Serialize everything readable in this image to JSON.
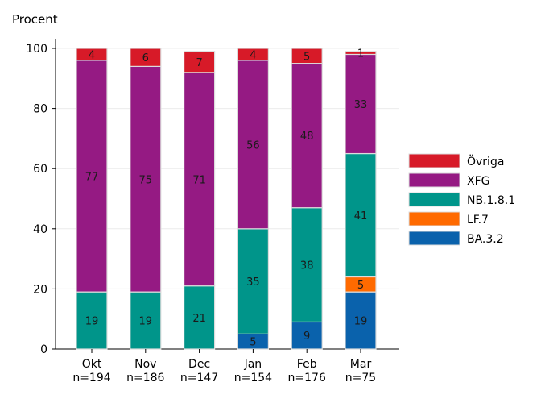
{
  "chart_data": {
    "type": "bar",
    "stacked": true,
    "ylabel": "Procent",
    "ylim": [
      0,
      100
    ],
    "yticks": [
      0,
      20,
      40,
      60,
      80,
      100
    ],
    "grid": true,
    "legend_position": "right",
    "categories": [
      "Okt",
      "Nov",
      "Dec",
      "Jan",
      "Feb",
      "Mar"
    ],
    "category_counts": [
      "n=194",
      "n=186",
      "n=147",
      "n=154",
      "n=176",
      "n=75"
    ],
    "series": [
      {
        "name": "BA.3.2",
        "color": "#0a62ac",
        "values": [
          0,
          0,
          0,
          5,
          9,
          19
        ]
      },
      {
        "name": "LF.7",
        "color": "#ff6a00",
        "values": [
          0,
          0,
          0,
          0,
          0,
          5
        ]
      },
      {
        "name": "NB.1.8.1",
        "color": "#00958a",
        "values": [
          19,
          19,
          21,
          35,
          38,
          41
        ]
      },
      {
        "name": "XFG",
        "color": "#951a83",
        "values": [
          77,
          75,
          71,
          56,
          48,
          33
        ]
      },
      {
        "name": "Övriga",
        "color": "#d71a28",
        "values": [
          4,
          6,
          7,
          4,
          5,
          1
        ]
      }
    ],
    "legend_order": [
      "Övriga",
      "XFG",
      "NB.1.8.1",
      "LF.7",
      "BA.3.2"
    ]
  }
}
